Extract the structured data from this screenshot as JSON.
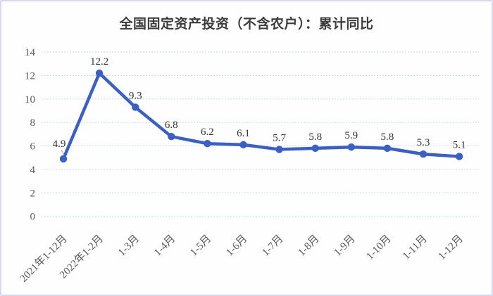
{
  "title": "全国固定资产投资（不含农户）：累计同比",
  "colors": {
    "line": "#3a5fc5",
    "marker": "#3a5fc5",
    "grid": "#c9d8e9",
    "tick_text": "#595959",
    "data_label_text": "#333333",
    "leader_line": "#a6a6a6",
    "border": "#d9d6f1",
    "background": "#fefefe",
    "title_text": "#3d3d3d"
  },
  "chart_data": {
    "type": "line",
    "title": "全国固定资产投资（不含农户）：累计同比",
    "categories": [
      "2021年1-12月",
      "2022年1-2月",
      "1-3月",
      "1-4月",
      "1-5月",
      "1-6月",
      "1-7月",
      "1-8月",
      "1-9月",
      "1-10月",
      "1-11月",
      "1-12月"
    ],
    "values": [
      4.9,
      12.2,
      9.3,
      6.8,
      6.2,
      6.1,
      5.7,
      5.8,
      5.9,
      5.8,
      5.3,
      5.1
    ],
    "data_labels": [
      "4.9",
      "12.2",
      "9.3",
      "6.8",
      "6.2",
      "6.1",
      "5.7",
      "5.8",
      "5.9",
      "5.8",
      "5.3",
      "5.1"
    ],
    "xlabel": "",
    "ylabel": "",
    "ylim": [
      0,
      14
    ],
    "yticks": [
      0,
      2,
      4,
      6,
      8,
      10,
      12,
      14
    ],
    "grid": true,
    "grid_style": "dashed",
    "legend": "none",
    "marker": "circle",
    "x_label_rotation": -45
  }
}
